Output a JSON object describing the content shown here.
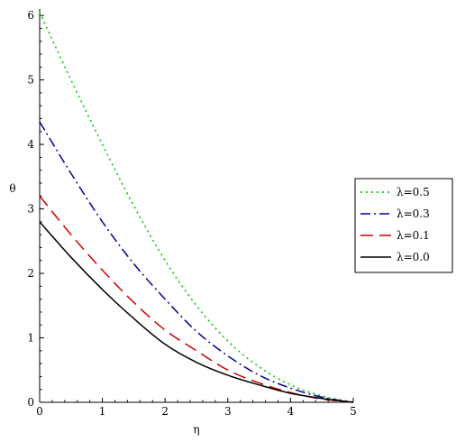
{
  "chart_data": {
    "type": "line",
    "title": "",
    "xlabel": "η",
    "ylabel": "θ",
    "xlim": [
      0,
      5
    ],
    "ylim": [
      0,
      6.1
    ],
    "xticks": [
      "0",
      "1",
      "2",
      "3",
      "4",
      "5"
    ],
    "yticks": [
      "0",
      "1",
      "2",
      "3",
      "4",
      "5",
      "6"
    ],
    "grid": false,
    "legend_position": "right",
    "x": [
      0,
      0.5,
      1,
      1.5,
      2,
      2.5,
      3,
      3.5,
      4,
      4.5,
      5
    ],
    "series": [
      {
        "name": "λ=0.5",
        "color": "#00cc00",
        "style": "dotted",
        "values": [
          6.05,
          5.0,
          4.0,
          3.05,
          2.2,
          1.5,
          0.95,
          0.55,
          0.27,
          0.1,
          0.0
        ]
      },
      {
        "name": "λ=0.3",
        "color": "#000099",
        "style": "dashdot",
        "values": [
          4.35,
          3.55,
          2.8,
          2.15,
          1.6,
          1.1,
          0.72,
          0.42,
          0.22,
          0.08,
          0.0
        ]
      },
      {
        "name": "λ=0.1",
        "color": "#cc0000",
        "style": "dashed",
        "values": [
          3.2,
          2.6,
          2.05,
          1.55,
          1.12,
          0.8,
          0.5,
          0.3,
          0.15,
          0.05,
          0.0
        ]
      },
      {
        "name": "λ=0.0",
        "color": "#000000",
        "style": "solid",
        "values": [
          2.8,
          2.25,
          1.75,
          1.3,
          0.9,
          0.62,
          0.42,
          0.27,
          0.14,
          0.06,
          0.0
        ]
      }
    ]
  }
}
